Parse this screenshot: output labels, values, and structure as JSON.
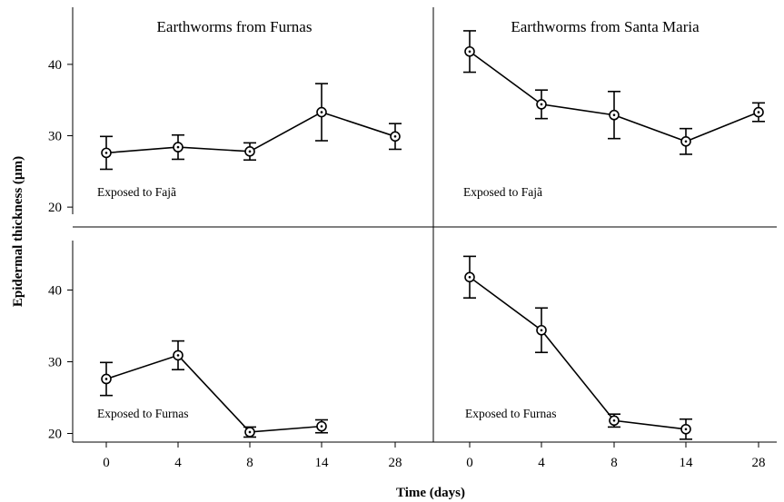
{
  "figure": {
    "ylabel": "Epidermal thickness (µm)",
    "xlabel": "Time (days)"
  },
  "chart_data": [
    {
      "type": "line",
      "title": "Earthworms from Furnas",
      "annotation": "Exposed to Fajã",
      "categories": [
        "0",
        "4",
        "8",
        "14",
        "28"
      ],
      "series": [
        {
          "values": [
            27.6,
            28.4,
            27.8,
            33.3,
            29.9
          ],
          "errors": [
            2.3,
            1.7,
            1.2,
            4.0,
            1.8
          ]
        }
      ],
      "yticks": [
        20,
        30,
        40
      ],
      "ylim": [
        19,
        48
      ]
    },
    {
      "type": "line",
      "title": "Earthworms from Santa Maria",
      "annotation": "Exposed to Fajã",
      "categories": [
        "0",
        "4",
        "8",
        "14",
        "28"
      ],
      "series": [
        {
          "values": [
            41.8,
            34.4,
            32.9,
            29.2,
            33.3
          ],
          "errors": [
            2.9,
            2.0,
            3.3,
            1.8,
            1.3
          ]
        }
      ],
      "yticks": [
        20,
        30,
        40
      ],
      "ylim": [
        19,
        48
      ]
    },
    {
      "type": "line",
      "title": "",
      "annotation": "Exposed to Furnas",
      "categories": [
        "0",
        "4",
        "8",
        "14",
        "28"
      ],
      "series": [
        {
          "values": [
            27.6,
            30.9,
            20.2,
            21.0,
            null
          ],
          "errors": [
            2.3,
            2.0,
            0.7,
            0.9,
            null
          ]
        }
      ],
      "yticks": [
        20,
        30,
        40
      ],
      "ylim": [
        18.8,
        46.9
      ]
    },
    {
      "type": "line",
      "title": "",
      "annotation": "Exposed to Furnas",
      "categories": [
        "0",
        "4",
        "8",
        "14",
        "28"
      ],
      "series": [
        {
          "values": [
            41.8,
            34.4,
            21.8,
            20.6,
            null
          ],
          "errors": [
            2.9,
            3.1,
            0.9,
            1.4,
            null
          ]
        }
      ],
      "yticks": [
        20,
        30,
        40
      ],
      "ylim": [
        18.8,
        46.9
      ]
    }
  ]
}
